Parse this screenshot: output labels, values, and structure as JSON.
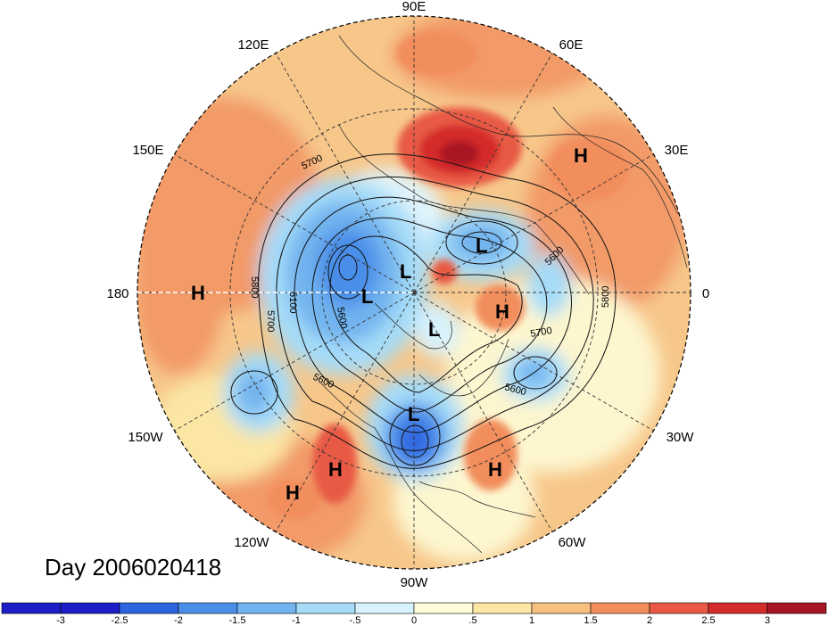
{
  "title": "Day 2006020418",
  "longitude_labels": [
    "90E",
    "60E",
    "30E",
    "0",
    "30W",
    "60W",
    "90W",
    "120W",
    "150W",
    "180",
    "150E",
    "120E"
  ],
  "pressure_systems": [
    {
      "type": "H",
      "label": "H"
    },
    {
      "type": "H",
      "label": "H"
    },
    {
      "type": "H",
      "label": "H"
    },
    {
      "type": "H",
      "label": "H"
    },
    {
      "type": "H",
      "label": "H"
    },
    {
      "type": "H",
      "label": "H"
    },
    {
      "type": "L",
      "label": "L"
    },
    {
      "type": "L",
      "label": "L"
    },
    {
      "type": "L",
      "label": "L"
    },
    {
      "type": "L",
      "label": "L"
    },
    {
      "type": "L",
      "label": "L"
    }
  ],
  "contour_labels": [
    "5700",
    "5800",
    "5700",
    "5100",
    "5600",
    "5600",
    "5700",
    "5600",
    "5800",
    "5600"
  ],
  "colorbar": {
    "ticks": [
      "-3",
      "-2.5",
      "-2",
      "-1.5",
      "-1",
      "-.5",
      "0",
      ".5",
      "1",
      "1.5",
      "2",
      "2.5",
      "3"
    ],
    "colors": [
      "#1e1ec8",
      "#2d64e0",
      "#4a8ee8",
      "#72b4ef",
      "#a6dcf8",
      "#d7f2fc",
      "#fdfbd8",
      "#fbe6a4",
      "#f7c07e",
      "#f28d5b",
      "#e85a44",
      "#d42b2b",
      "#a81524"
    ]
  }
}
